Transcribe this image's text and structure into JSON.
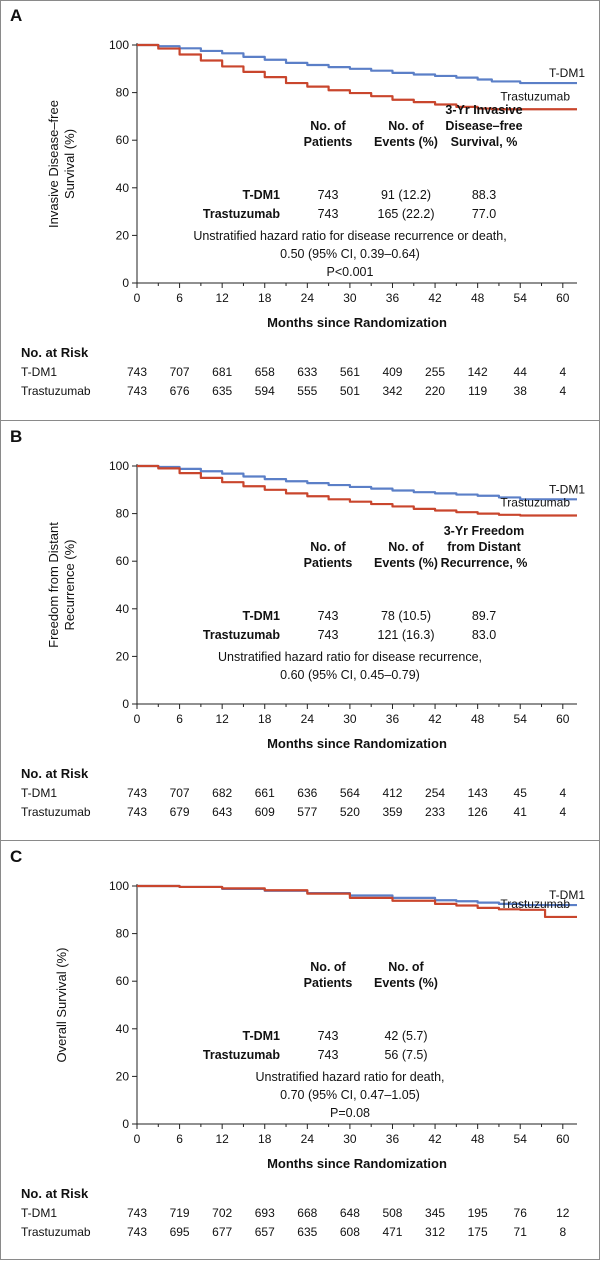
{
  "chart_data": [
    {
      "type": "line",
      "panel_letter": "A",
      "xlabel": "Months since Randomization",
      "ylabel": "Invasive Disease–free Survival (%)",
      "xlim": [
        0,
        62
      ],
      "ylim": [
        0,
        100
      ],
      "x_ticks": [
        0,
        6,
        12,
        18,
        24,
        30,
        36,
        42,
        48,
        54,
        60
      ],
      "y_ticks": [
        0,
        20,
        40,
        60,
        80,
        100
      ],
      "series": [
        {
          "name": "T-DM1",
          "color": "#5b7fc7",
          "x": [
            0,
            3,
            6,
            9,
            12,
            15,
            18,
            21,
            24,
            27,
            30,
            33,
            36,
            39,
            42,
            45,
            48,
            50,
            54,
            62
          ],
          "y": [
            100,
            99.5,
            98.6,
            97.5,
            96.5,
            95.0,
            93.8,
            92.5,
            91.6,
            90.7,
            90.0,
            89.2,
            88.3,
            87.6,
            87.0,
            86.3,
            85.5,
            84.7,
            84.0,
            84.0
          ]
        },
        {
          "name": "Trastuzumab",
          "color": "#c9462d",
          "x": [
            0,
            3,
            6,
            9,
            12,
            15,
            18,
            21,
            24,
            27,
            30,
            33,
            36,
            39,
            42,
            45,
            48,
            50,
            54,
            62
          ],
          "y": [
            100,
            98.5,
            96.0,
            93.5,
            91.0,
            88.7,
            86.5,
            84.0,
            82.5,
            81.0,
            79.8,
            78.5,
            77.0,
            76.0,
            75.0,
            74.0,
            73.3,
            73.0,
            73.0,
            73.0
          ]
        }
      ],
      "table": {
        "headers": [
          "No. of\nPatients",
          "No. of\nEvents (%)",
          "3-Yr Invasive\nDisease–free\nSurvival, %"
        ],
        "rows": [
          {
            "label": "T-DM1",
            "values": [
              "743",
              "91 (12.2)",
              "88.3"
            ]
          },
          {
            "label": "Trastuzumab",
            "values": [
              "743",
              "165 (22.2)",
              "77.0"
            ]
          }
        ],
        "note": [
          "Unstratified hazard ratio for disease recurrence or death,",
          "0.50 (95% CI, 0.39–0.64)",
          "P<0.001"
        ]
      },
      "at_risk": {
        "title": "No. at Risk",
        "rows": [
          {
            "label": "T-DM1",
            "values": [
              743,
              707,
              681,
              658,
              633,
              561,
              409,
              255,
              142,
              44,
              4
            ]
          },
          {
            "label": "Trastuzumab",
            "values": [
              743,
              676,
              635,
              594,
              555,
              501,
              342,
              220,
              119,
              38,
              4
            ]
          }
        ]
      }
    },
    {
      "type": "line",
      "panel_letter": "B",
      "xlabel": "Months since Randomization",
      "ylabel": "Freedom from Distant Recurrence (%)",
      "xlim": [
        0,
        62
      ],
      "ylim": [
        0,
        100
      ],
      "x_ticks": [
        0,
        6,
        12,
        18,
        24,
        30,
        36,
        42,
        48,
        54,
        60
      ],
      "y_ticks": [
        0,
        20,
        40,
        60,
        80,
        100
      ],
      "series": [
        {
          "name": "T-DM1",
          "color": "#5b7fc7",
          "x": [
            0,
            3,
            6,
            9,
            12,
            15,
            18,
            21,
            24,
            27,
            30,
            33,
            36,
            39,
            42,
            45,
            48,
            51,
            54,
            62
          ],
          "y": [
            100,
            99.6,
            98.8,
            97.8,
            96.8,
            95.6,
            94.5,
            93.6,
            92.8,
            92.0,
            91.2,
            90.5,
            89.7,
            89.0,
            88.5,
            88.0,
            87.5,
            86.8,
            86.0,
            86.0
          ]
        },
        {
          "name": "Trastuzumab",
          "color": "#c9462d",
          "x": [
            0,
            3,
            6,
            9,
            12,
            15,
            18,
            21,
            24,
            27,
            30,
            33,
            36,
            39,
            42,
            45,
            48,
            51,
            54,
            62
          ],
          "y": [
            100,
            99.0,
            97.0,
            95.0,
            93.2,
            91.5,
            90.0,
            88.5,
            87.3,
            86.0,
            85.0,
            84.0,
            83.0,
            82.0,
            81.3,
            80.6,
            80.0,
            79.5,
            79.2,
            79.2
          ]
        }
      ],
      "table": {
        "headers": [
          "No. of\nPatients",
          "No. of\nEvents (%)",
          "3-Yr Freedom\nfrom Distant\nRecurrence, %"
        ],
        "rows": [
          {
            "label": "T-DM1",
            "values": [
              "743",
              "78 (10.5)",
              "89.7"
            ]
          },
          {
            "label": "Trastuzumab",
            "values": [
              "743",
              "121 (16.3)",
              "83.0"
            ]
          }
        ],
        "note": [
          "Unstratified hazard ratio for disease recurrence,",
          "0.60 (95% CI, 0.45–0.79)"
        ]
      },
      "at_risk": {
        "title": "No. at Risk",
        "rows": [
          {
            "label": "T-DM1",
            "values": [
              743,
              707,
              682,
              661,
              636,
              564,
              412,
              254,
              143,
              45,
              4
            ]
          },
          {
            "label": "Trastuzumab",
            "values": [
              743,
              679,
              643,
              609,
              577,
              520,
              359,
              233,
              126,
              41,
              4
            ]
          }
        ]
      }
    },
    {
      "type": "line",
      "panel_letter": "C",
      "xlabel": "Months since Randomization",
      "ylabel": "Overall Survival (%)",
      "xlim": [
        0,
        62
      ],
      "ylim": [
        0,
        100
      ],
      "x_ticks": [
        0,
        6,
        12,
        18,
        24,
        30,
        36,
        42,
        48,
        54,
        60
      ],
      "y_ticks": [
        0,
        20,
        40,
        60,
        80,
        100
      ],
      "series": [
        {
          "name": "T-DM1",
          "color": "#5b7fc7",
          "x": [
            0,
            6,
            12,
            18,
            24,
            30,
            36,
            42,
            45,
            48,
            51,
            54,
            57,
            62
          ],
          "y": [
            100,
            99.6,
            98.8,
            98.0,
            97.0,
            96.0,
            95.0,
            94.0,
            93.6,
            93.0,
            92.5,
            92.0,
            92.0,
            92.0
          ]
        },
        {
          "name": "Trastuzumab",
          "color": "#c9462d",
          "x": [
            0,
            6,
            12,
            18,
            24,
            30,
            36,
            42,
            45,
            48,
            51,
            54,
            57,
            57.5,
            62
          ],
          "y": [
            100,
            99.6,
            99.0,
            98.2,
            96.8,
            95.0,
            93.8,
            92.5,
            91.8,
            90.8,
            90.2,
            90.0,
            90.0,
            87.0,
            87.0
          ]
        }
      ],
      "table": {
        "headers": [
          "No. of\nPatients",
          "No. of\nEvents (%)"
        ],
        "rows": [
          {
            "label": "T-DM1",
            "values": [
              "743",
              "42 (5.7)"
            ]
          },
          {
            "label": "Trastuzumab",
            "values": [
              "743",
              "56 (7.5)"
            ]
          }
        ],
        "note": [
          "Unstratified hazard ratio for death,",
          "0.70 (95% CI, 0.47–1.05)",
          "P=0.08"
        ]
      },
      "at_risk": {
        "title": "No. at Risk",
        "rows": [
          {
            "label": "T-DM1",
            "values": [
              743,
              719,
              702,
              693,
              668,
              648,
              508,
              345,
              195,
              76,
              12
            ]
          },
          {
            "label": "Trastuzumab",
            "values": [
              743,
              695,
              677,
              657,
              635,
              608,
              471,
              312,
              175,
              71,
              8
            ]
          }
        ]
      }
    }
  ]
}
